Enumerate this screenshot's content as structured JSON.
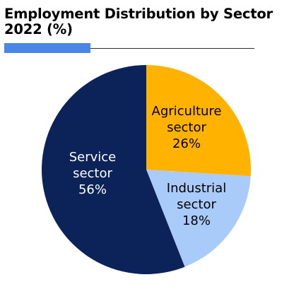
{
  "title_line1": "Employment Distribution by Sector",
  "title_line2": "2022 (%)",
  "accent_color": "#4a86e8",
  "chart_data": {
    "type": "pie",
    "title": "Employment Distribution by Sector 2022 (%)",
    "slices": [
      {
        "label": [
          "Agriculture",
          "sector",
          "26%"
        ],
        "category": "Agriculture sector",
        "value": 26,
        "color": "#ffb300",
        "text_color": "#000000"
      },
      {
        "label": [
          "Industrial",
          "sector",
          "18%"
        ],
        "category": "Industrial sector",
        "value": 18,
        "color": "#a9cbfa",
        "text_color": "#000000"
      },
      {
        "label": [
          "Service",
          "sector",
          "56%"
        ],
        "category": "Service sector",
        "value": 56,
        "color": "#0b2358",
        "text_color": "#ffffff"
      }
    ],
    "start_angle": "12 o'clock",
    "direction": "clockwise",
    "legend": "none"
  }
}
